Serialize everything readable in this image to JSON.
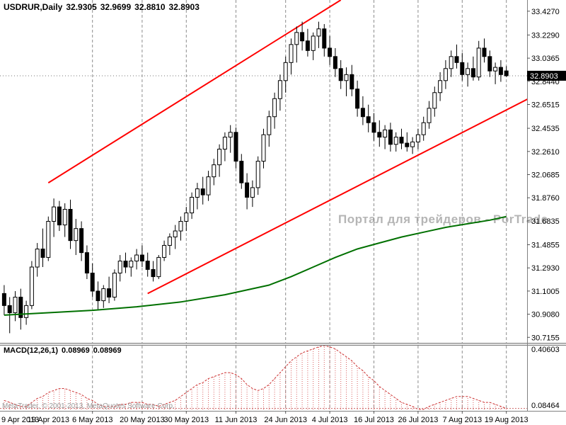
{
  "header": {
    "symbol_period": "USDRUR,Daily",
    "open": "32.9305",
    "high": "32.9699",
    "low": "32.8810",
    "close": "32.8903"
  },
  "watermark": "Портал для трейдеров - PorTrade",
  "credit": "MetaTrader, © 2001-2013, MetaQuotes Software Corp.",
  "macd_header": {
    "label": "MACD(12,26,1)",
    "value": "0.08969",
    "signal": "0.08969"
  },
  "price_axis": {
    "labels": [
      "33.4270",
      "33.2290",
      "33.0365",
      "32.8440",
      "32.6515",
      "32.4535",
      "32.2610",
      "32.0685",
      "31.8760",
      "31.6835",
      "31.4855",
      "31.2930",
      "31.1005",
      "30.9080",
      "30.7155"
    ],
    "current": "32.8903"
  },
  "macd_axis": {
    "top": "0.40603",
    "bottom": "0.08464"
  },
  "x_axis": {
    "labels": [
      {
        "text": "9 Apr 2013",
        "index": 0,
        "line": false
      },
      {
        "text": "19 Apr 2013",
        "index": 8,
        "line": false
      },
      {
        "text": "6 May 2013",
        "index": 16,
        "line": true
      },
      {
        "text": "20 May 2013",
        "index": 25,
        "line": true
      },
      {
        "text": "30 May 2013",
        "index": 33,
        "line": true
      },
      {
        "text": "11 Jun 2013",
        "index": 42,
        "line": true
      },
      {
        "text": "24 Jun 2013",
        "index": 51,
        "line": true
      },
      {
        "text": "4 Jul 2013",
        "index": 59,
        "line": true
      },
      {
        "text": "16 Jul 2013",
        "index": 67,
        "line": true
      },
      {
        "text": "26 Jul 2013",
        "index": 75,
        "line": true
      },
      {
        "text": "7 Aug 2013",
        "index": 83,
        "line": true
      },
      {
        "text": "19 Aug 2013",
        "index": 91,
        "line": true
      }
    ]
  },
  "colors": {
    "background": "#ffffff",
    "bull": "#ffffff",
    "bear": "#000000",
    "outline": "#000000",
    "trend": "#ff0000",
    "ma": "#007000",
    "macd": "#d95f5f",
    "macd_line": "#cc3333",
    "grid": "#8c8c8c",
    "axis_text": "#000000",
    "badge_bg": "#000000",
    "badge_text": "#ffffff",
    "separator": "#808080",
    "watermark": "#b5b5b5",
    "credit": "#9a9a9a"
  },
  "chart_data": [
    {
      "type": "candlestick",
      "title": "USDRUR,Daily",
      "timeframe": "Daily",
      "date_range": [
        "9 Apr 2013",
        "19 Aug 2013"
      ],
      "ylim": [
        30.67,
        33.52
      ],
      "y_ticks": [
        33.427,
        33.229,
        33.0365,
        32.844,
        32.6515,
        32.4535,
        32.261,
        32.0685,
        31.876,
        31.6835,
        31.4855,
        31.293,
        31.1005,
        30.908,
        30.7155
      ],
      "current_price": 32.8903,
      "candles": [
        [
          31.08,
          31.15,
          30.9,
          30.98
        ],
        [
          30.98,
          31.05,
          30.75,
          30.92
        ],
        [
          30.92,
          31.1,
          30.85,
          31.05
        ],
        [
          31.05,
          31.12,
          30.78,
          30.88
        ],
        [
          30.88,
          31.02,
          30.82,
          30.98
        ],
        [
          30.98,
          31.35,
          30.95,
          31.3
        ],
        [
          31.3,
          31.5,
          31.22,
          31.45
        ],
        [
          31.45,
          31.62,
          31.3,
          31.38
        ],
        [
          31.38,
          31.72,
          31.35,
          31.68
        ],
        [
          31.68,
          31.87,
          31.55,
          31.8
        ],
        [
          31.8,
          31.85,
          31.6,
          31.65
        ],
        [
          31.65,
          31.83,
          31.55,
          31.78
        ],
        [
          31.78,
          31.86,
          31.45,
          31.52
        ],
        [
          31.52,
          31.7,
          31.4,
          31.62
        ],
        [
          31.62,
          31.68,
          31.35,
          31.42
        ],
        [
          31.42,
          31.48,
          31.2,
          31.25
        ],
        [
          31.25,
          31.33,
          31.05,
          31.1
        ],
        [
          31.1,
          31.18,
          30.95,
          31.02
        ],
        [
          31.02,
          31.15,
          30.96,
          31.12
        ],
        [
          31.12,
          31.22,
          31.0,
          31.05
        ],
        [
          31.05,
          31.28,
          31.02,
          31.25
        ],
        [
          31.25,
          31.4,
          31.18,
          31.35
        ],
        [
          31.35,
          31.42,
          31.25,
          31.3
        ],
        [
          31.3,
          31.38,
          31.22,
          31.35
        ],
        [
          31.35,
          31.45,
          31.28,
          31.4
        ],
        [
          31.4,
          31.48,
          31.3,
          31.35
        ],
        [
          31.35,
          31.42,
          31.22,
          31.28
        ],
        [
          31.28,
          31.35,
          31.18,
          31.22
        ],
        [
          31.22,
          31.4,
          31.2,
          31.38
        ],
        [
          31.38,
          31.52,
          31.35,
          31.48
        ],
        [
          31.48,
          31.58,
          31.4,
          31.55
        ],
        [
          31.55,
          31.65,
          31.45,
          31.6
        ],
        [
          31.6,
          31.72,
          31.52,
          31.68
        ],
        [
          31.68,
          31.8,
          31.6,
          31.75
        ],
        [
          31.75,
          31.92,
          31.7,
          31.88
        ],
        [
          31.88,
          32.0,
          31.78,
          31.95
        ],
        [
          31.95,
          32.05,
          31.82,
          31.9
        ],
        [
          31.9,
          32.1,
          31.85,
          32.05
        ],
        [
          32.05,
          32.2,
          31.98,
          32.15
        ],
        [
          32.15,
          32.32,
          32.05,
          32.28
        ],
        [
          32.28,
          32.42,
          32.18,
          32.38
        ],
        [
          32.38,
          32.48,
          32.25,
          32.42
        ],
        [
          32.42,
          32.46,
          32.12,
          32.18
        ],
        [
          32.18,
          32.24,
          31.95,
          32.0
        ],
        [
          32.0,
          32.08,
          31.78,
          31.88
        ],
        [
          31.88,
          32.02,
          31.8,
          31.96
        ],
        [
          31.96,
          32.22,
          31.9,
          32.18
        ],
        [
          32.18,
          32.45,
          32.12,
          32.4
        ],
        [
          32.4,
          32.6,
          32.3,
          32.55
        ],
        [
          32.55,
          32.75,
          32.45,
          32.7
        ],
        [
          32.7,
          32.9,
          32.6,
          32.85
        ],
        [
          32.85,
          33.05,
          32.75,
          33.0
        ],
        [
          33.0,
          33.2,
          32.9,
          33.15
        ],
        [
          33.15,
          33.3,
          33.0,
          33.25
        ],
        [
          33.25,
          33.34,
          33.1,
          33.18
        ],
        [
          33.18,
          33.28,
          33.05,
          33.1
        ],
        [
          33.1,
          33.25,
          33.02,
          33.22
        ],
        [
          33.22,
          33.34,
          33.12,
          33.28
        ],
        [
          33.28,
          33.32,
          33.05,
          33.12
        ],
        [
          33.12,
          33.22,
          32.98,
          33.05
        ],
        [
          33.05,
          33.12,
          32.88,
          32.95
        ],
        [
          32.95,
          33.02,
          32.78,
          32.85
        ],
        [
          32.85,
          32.96,
          32.72,
          32.9
        ],
        [
          32.9,
          32.98,
          32.72,
          32.78
        ],
        [
          32.78,
          32.85,
          32.55,
          32.62
        ],
        [
          32.62,
          32.72,
          32.48,
          32.55
        ],
        [
          32.55,
          32.65,
          32.42,
          32.5
        ],
        [
          32.5,
          32.58,
          32.35,
          32.42
        ],
        [
          32.42,
          32.52,
          32.3,
          32.38
        ],
        [
          32.38,
          32.48,
          32.28,
          32.44
        ],
        [
          32.44,
          32.5,
          32.26,
          32.32
        ],
        [
          32.32,
          32.42,
          32.26,
          32.38
        ],
        [
          32.38,
          32.45,
          32.28,
          32.33
        ],
        [
          32.33,
          32.42,
          32.26,
          32.3
        ],
        [
          32.3,
          32.38,
          32.24,
          32.34
        ],
        [
          32.34,
          32.45,
          32.28,
          32.4
        ],
        [
          32.4,
          32.55,
          32.35,
          32.5
        ],
        [
          32.5,
          32.68,
          32.45,
          32.62
        ],
        [
          32.62,
          32.8,
          32.55,
          32.75
        ],
        [
          32.75,
          32.92,
          32.68,
          32.85
        ],
        [
          32.85,
          33.02,
          32.78,
          32.95
        ],
        [
          32.95,
          33.1,
          32.88,
          33.05
        ],
        [
          33.05,
          33.15,
          32.95,
          33.0
        ],
        [
          33.0,
          33.08,
          32.85,
          32.9
        ],
        [
          32.9,
          33.0,
          32.8,
          32.95
        ],
        [
          32.95,
          33.05,
          32.85,
          32.88
        ],
        [
          32.88,
          33.18,
          32.85,
          33.12
        ],
        [
          33.12,
          33.2,
          33.0,
          33.05
        ],
        [
          33.05,
          33.1,
          32.88,
          32.93
        ],
        [
          32.93,
          33.0,
          32.82,
          32.96
        ],
        [
          32.96,
          33.02,
          32.84,
          32.9
        ],
        [
          32.9305,
          32.9699,
          32.881,
          32.8903
        ]
      ],
      "overlays": {
        "moving_average": {
          "color": "#007000",
          "points": [
            [
              0,
              30.9
            ],
            [
              8,
              30.92
            ],
            [
              16,
              30.94
            ],
            [
              24,
              30.97
            ],
            [
              32,
              31.01
            ],
            [
              40,
              31.07
            ],
            [
              48,
              31.15
            ],
            [
              52,
              31.22
            ],
            [
              56,
              31.3
            ],
            [
              60,
              31.38
            ],
            [
              64,
              31.45
            ],
            [
              68,
              31.5
            ],
            [
              72,
              31.55
            ],
            [
              76,
              31.59
            ],
            [
              80,
              31.63
            ],
            [
              84,
              31.66
            ],
            [
              88,
              31.69
            ],
            [
              91,
              31.72
            ]
          ]
        },
        "trend_channel": {
          "color": "#ff0000",
          "upper": [
            [
              8,
              32.0
            ],
            [
              61,
              33.52
            ]
          ],
          "lower": [
            [
              26,
              31.08
            ],
            [
              95,
              32.7
            ]
          ]
        }
      }
    },
    {
      "type": "bar",
      "name": "MACD(12,26,1)",
      "ylim": [
        0.08464,
        0.40603
      ],
      "current": 0.08969,
      "values": [
        0.13,
        0.12,
        0.11,
        0.1,
        0.1,
        0.12,
        0.14,
        0.15,
        0.17,
        0.18,
        0.19,
        0.19,
        0.18,
        0.17,
        0.16,
        0.14,
        0.13,
        0.11,
        0.1,
        0.1,
        0.1,
        0.11,
        0.11,
        0.12,
        0.12,
        0.12,
        0.11,
        0.11,
        0.1,
        0.11,
        0.12,
        0.13,
        0.15,
        0.17,
        0.19,
        0.21,
        0.22,
        0.24,
        0.25,
        0.26,
        0.27,
        0.27,
        0.26,
        0.24,
        0.21,
        0.19,
        0.18,
        0.19,
        0.21,
        0.24,
        0.27,
        0.3,
        0.33,
        0.35,
        0.37,
        0.38,
        0.39,
        0.4,
        0.40603,
        0.4,
        0.39,
        0.37,
        0.35,
        0.33,
        0.3,
        0.28,
        0.25,
        0.23,
        0.2,
        0.18,
        0.16,
        0.14,
        0.12,
        0.11,
        0.1,
        0.085,
        0.08464,
        0.1,
        0.11,
        0.12,
        0.13,
        0.14,
        0.15,
        0.15,
        0.15,
        0.14,
        0.13,
        0.12,
        0.12,
        0.11,
        0.1,
        0.08969
      ]
    }
  ]
}
